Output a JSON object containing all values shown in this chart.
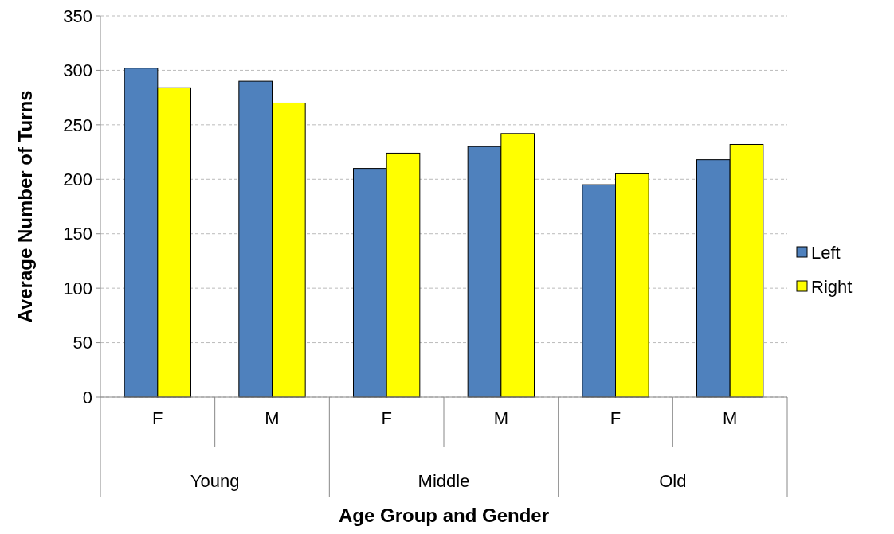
{
  "chart_data": {
    "type": "bar",
    "xlabel": "Age Group and Gender",
    "ylabel": "Average Number of Turns",
    "categories": [
      "F",
      "M",
      "F",
      "M",
      "F",
      "M"
    ],
    "annotations": [
      "Young",
      "Middle",
      "Old"
    ],
    "series": [
      {
        "name": "Left",
        "color": "#4f81bd",
        "values": [
          302,
          290,
          210,
          230,
          195,
          218
        ]
      },
      {
        "name": "Right",
        "color": "#ffff00",
        "values": [
          284,
          270,
          224,
          242,
          205,
          232
        ]
      }
    ],
    "ylim": [
      0,
      350
    ],
    "yticks": [
      0,
      50,
      100,
      150,
      200,
      250,
      300,
      350
    ],
    "grid": "y",
    "legend": "right"
  }
}
